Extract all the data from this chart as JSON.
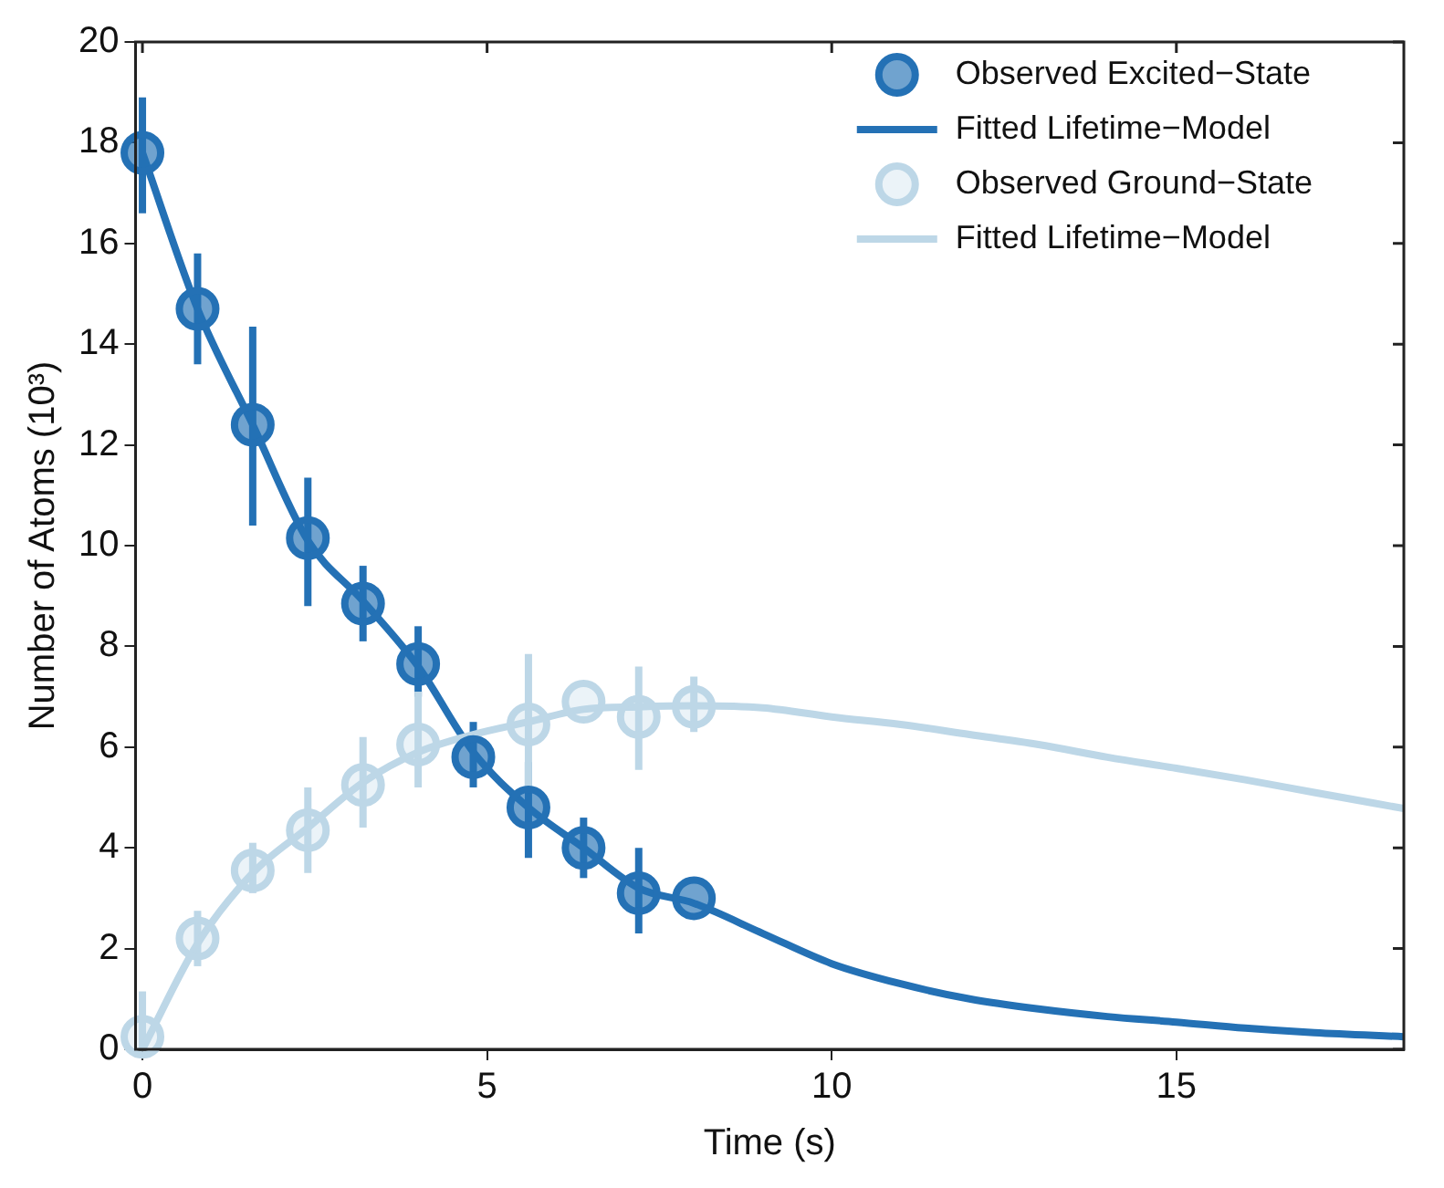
{
  "chart_data": {
    "type": "line",
    "xlabel": "Time (s)",
    "ylabel": "Number of Atoms (10³)",
    "xlim": [
      -0.1,
      18.3
    ],
    "xticks": [
      0,
      5,
      10,
      15
    ],
    "ylim": [
      0,
      20
    ],
    "yticks": [
      0,
      2,
      4,
      6,
      8,
      10,
      12,
      14,
      16,
      18,
      20
    ],
    "grid": false,
    "legend": "top right",
    "series": [
      {
        "name": "Observed Excited−State",
        "type": "scatter",
        "marker": "circle",
        "color": "#2471b5",
        "x": [
          0,
          0.8,
          1.6,
          2.4,
          3.2,
          4.0,
          4.8,
          5.6,
          6.4,
          7.2,
          8.0
        ],
        "values": [
          17.8,
          14.7,
          12.4,
          10.15,
          8.85,
          7.65,
          5.8,
          4.8,
          4.0,
          3.1,
          3.0
        ],
        "errors": [
          [
            16.6,
            18.9
          ],
          [
            13.6,
            15.8
          ],
          [
            10.4,
            14.35
          ],
          [
            8.8,
            11.35
          ],
          [
            8.1,
            9.6
          ],
          [
            7.0,
            8.4
          ],
          [
            5.2,
            6.5
          ],
          [
            3.8,
            5.7
          ],
          [
            3.4,
            4.6
          ],
          [
            2.3,
            4.0
          ],
          null
        ]
      },
      {
        "name": "Fitted Lifetime−Model",
        "type": "line",
        "marker": "none",
        "line_style": "solid",
        "color": "#2471b5",
        "x": [
          0,
          0.8,
          1.6,
          2.4,
          3.2,
          4.0,
          4.8,
          5.6,
          6.4,
          7.2,
          8.0,
          9,
          10,
          11,
          12,
          13,
          14,
          15,
          16,
          17,
          18.3
        ],
        "values": [
          17.8,
          14.7,
          12.4,
          10.1,
          8.9,
          7.6,
          5.9,
          4.8,
          4.0,
          3.2,
          2.9,
          2.3,
          1.7,
          1.3,
          1.0,
          0.8,
          0.65,
          0.54,
          0.42,
          0.33,
          0.25
        ]
      },
      {
        "name": "Observed Ground−State",
        "type": "scatter",
        "marker": "circle",
        "color": "#bdd7e7",
        "x": [
          0,
          0.8,
          1.6,
          2.4,
          3.2,
          4.0,
          4.8,
          5.6,
          6.4,
          7.2,
          8.0
        ],
        "values": [
          0.25,
          2.2,
          3.55,
          4.35,
          5.25,
          6.05,
          null,
          6.45,
          6.9,
          6.6,
          6.8
        ],
        "errors": [
          [
            0,
            1.15
          ],
          [
            1.65,
            2.75
          ],
          [
            3.1,
            4.1
          ],
          [
            3.5,
            5.2
          ],
          [
            4.4,
            6.2
          ],
          [
            5.2,
            7.1
          ],
          null,
          [
            5.2,
            7.85
          ],
          null,
          [
            5.55,
            7.6
          ],
          [
            6.3,
            7.4
          ]
        ]
      },
      {
        "name": "Fitted Lifetime−Model",
        "type": "line",
        "marker": "none",
        "line_style": "solid",
        "color": "#bdd7e7",
        "x": [
          0,
          0.8,
          1.6,
          2.4,
          3.2,
          4.0,
          4.8,
          5.6,
          6.4,
          7.2,
          8.0,
          9,
          10,
          11,
          12,
          13,
          14,
          15,
          16,
          17,
          18.3
        ],
        "values": [
          0,
          2.1,
          3.5,
          4.4,
          5.3,
          5.9,
          6.25,
          6.5,
          6.75,
          6.8,
          6.82,
          6.78,
          6.6,
          6.45,
          6.25,
          6.05,
          5.8,
          5.58,
          5.35,
          5.1,
          4.78
        ]
      }
    ]
  }
}
